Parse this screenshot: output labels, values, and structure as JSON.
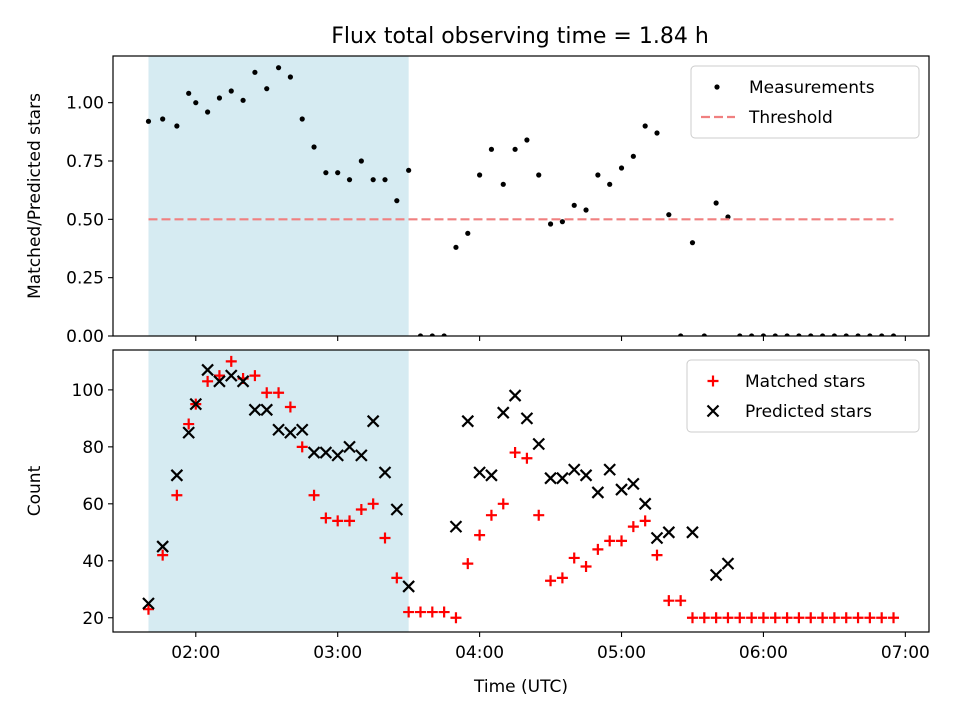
{
  "figure": {
    "title": "Flux total observing time = 1.84 h"
  },
  "chart_data": [
    {
      "type": "scatter",
      "ylabel": "Matched/Predicted stars",
      "xlabel": "",
      "xlim": [
        "01:25",
        "07:10"
      ],
      "ylim": [
        0,
        1.2
      ],
      "xticks": [
        "02:00",
        "03:00",
        "04:00",
        "05:00",
        "06:00",
        "07:00"
      ],
      "yticks": [
        0.0,
        0.25,
        0.5,
        0.75,
        1.0
      ],
      "ytick_labels": [
        "0.00",
        "0.25",
        "0.50",
        "0.75",
        "1.00"
      ],
      "show_xtick_labels": false,
      "shaded_span": {
        "x": [
          "01:40",
          "03:30"
        ],
        "color": "#add8e6"
      },
      "legend": {
        "location": "upper right"
      },
      "series": [
        {
          "name": "Measurements",
          "marker": "dot",
          "color": "#000000",
          "points": [
            [
              "01:40",
              0.92
            ],
            [
              "01:46",
              0.93
            ],
            [
              "01:52",
              0.9
            ],
            [
              "01:57",
              1.04
            ],
            [
              "02:00",
              1.0
            ],
            [
              "02:05",
              0.96
            ],
            [
              "02:10",
              1.02
            ],
            [
              "02:15",
              1.05
            ],
            [
              "02:20",
              1.01
            ],
            [
              "02:25",
              1.13
            ],
            [
              "02:30",
              1.06
            ],
            [
              "02:35",
              1.15
            ],
            [
              "02:40",
              1.11
            ],
            [
              "02:45",
              0.93
            ],
            [
              "02:50",
              0.81
            ],
            [
              "02:55",
              0.7
            ],
            [
              "03:00",
              0.7
            ],
            [
              "03:05",
              0.67
            ],
            [
              "03:10",
              0.75
            ],
            [
              "03:15",
              0.67
            ],
            [
              "03:20",
              0.67
            ],
            [
              "03:25",
              0.58
            ],
            [
              "03:30",
              0.71
            ],
            [
              "03:35",
              0.0
            ],
            [
              "03:40",
              0.0
            ],
            [
              "03:45",
              0.0
            ],
            [
              "03:50",
              0.38
            ],
            [
              "03:55",
              0.44
            ],
            [
              "04:00",
              0.69
            ],
            [
              "04:05",
              0.8
            ],
            [
              "04:10",
              0.65
            ],
            [
              "04:15",
              0.8
            ],
            [
              "04:20",
              0.84
            ],
            [
              "04:25",
              0.69
            ],
            [
              "04:30",
              0.48
            ],
            [
              "04:35",
              0.49
            ],
            [
              "04:40",
              0.56
            ],
            [
              "04:45",
              0.54
            ],
            [
              "04:50",
              0.69
            ],
            [
              "04:55",
              0.65
            ],
            [
              "05:00",
              0.72
            ],
            [
              "05:05",
              0.77
            ],
            [
              "05:10",
              0.9
            ],
            [
              "05:15",
              0.87
            ],
            [
              "05:20",
              0.52
            ],
            [
              "05:25",
              0.0
            ],
            [
              "05:30",
              0.4
            ],
            [
              "05:35",
              0.0
            ],
            [
              "05:40",
              0.57
            ],
            [
              "05:45",
              0.51
            ],
            [
              "05:50",
              0.0
            ],
            [
              "05:55",
              0.0
            ],
            [
              "06:00",
              0.0
            ],
            [
              "06:05",
              0.0
            ],
            [
              "06:10",
              0.0
            ],
            [
              "06:15",
              0.0
            ],
            [
              "06:20",
              0.0
            ],
            [
              "06:25",
              0.0
            ],
            [
              "06:30",
              0.0
            ],
            [
              "06:35",
              0.0
            ],
            [
              "06:40",
              0.0
            ],
            [
              "06:45",
              0.0
            ],
            [
              "06:50",
              0.0
            ],
            [
              "06:55",
              0.0
            ]
          ]
        },
        {
          "name": "Threshold",
          "line": "dashed",
          "color": "#f08080",
          "x": [
            "01:40",
            "06:55"
          ],
          "y": [
            0.5,
            0.5
          ]
        }
      ]
    },
    {
      "type": "scatter",
      "ylabel": "Count",
      "xlabel": "Time (UTC)",
      "xlim": [
        "01:25",
        "07:10"
      ],
      "ylim": [
        15,
        114
      ],
      "xticks": [
        "02:00",
        "03:00",
        "04:00",
        "05:00",
        "06:00",
        "07:00"
      ],
      "yticks": [
        20,
        40,
        60,
        80,
        100
      ],
      "show_xtick_labels": true,
      "shaded_span": {
        "x": [
          "01:40",
          "03:30"
        ],
        "color": "#add8e6"
      },
      "legend": {
        "location": "upper right"
      },
      "series": [
        {
          "name": "Matched stars",
          "marker": "plus",
          "color": "#ff0000",
          "points": [
            [
              "01:40",
              23
            ],
            [
              "01:46",
              42
            ],
            [
              "01:52",
              63
            ],
            [
              "01:57",
              88
            ],
            [
              "02:00",
              95
            ],
            [
              "02:05",
              103
            ],
            [
              "02:10",
              105
            ],
            [
              "02:15",
              110
            ],
            [
              "02:20",
              104
            ],
            [
              "02:25",
              105
            ],
            [
              "02:30",
              99
            ],
            [
              "02:35",
              99
            ],
            [
              "02:40",
              94
            ],
            [
              "02:45",
              80
            ],
            [
              "02:50",
              63
            ],
            [
              "02:55",
              55
            ],
            [
              "03:00",
              54
            ],
            [
              "03:05",
              54
            ],
            [
              "03:10",
              58
            ],
            [
              "03:15",
              60
            ],
            [
              "03:20",
              48
            ],
            [
              "03:25",
              34
            ],
            [
              "03:30",
              22
            ],
            [
              "03:35",
              22
            ],
            [
              "03:40",
              22
            ],
            [
              "03:45",
              22
            ],
            [
              "03:50",
              20
            ],
            [
              "03:55",
              39
            ],
            [
              "04:00",
              49
            ],
            [
              "04:05",
              56
            ],
            [
              "04:10",
              60
            ],
            [
              "04:15",
              78
            ],
            [
              "04:20",
              76
            ],
            [
              "04:25",
              56
            ],
            [
              "04:30",
              33
            ],
            [
              "04:35",
              34
            ],
            [
              "04:40",
              41
            ],
            [
              "04:45",
              38
            ],
            [
              "04:50",
              44
            ],
            [
              "04:55",
              47
            ],
            [
              "05:00",
              47
            ],
            [
              "05:05",
              52
            ],
            [
              "05:10",
              54
            ],
            [
              "05:15",
              42
            ],
            [
              "05:20",
              26
            ],
            [
              "05:25",
              26
            ],
            [
              "05:30",
              20
            ],
            [
              "05:35",
              20
            ],
            [
              "05:40",
              20
            ],
            [
              "05:45",
              20
            ],
            [
              "05:50",
              20
            ],
            [
              "05:55",
              20
            ],
            [
              "06:00",
              20
            ],
            [
              "06:05",
              20
            ],
            [
              "06:10",
              20
            ],
            [
              "06:15",
              20
            ],
            [
              "06:20",
              20
            ],
            [
              "06:25",
              20
            ],
            [
              "06:30",
              20
            ],
            [
              "06:35",
              20
            ],
            [
              "06:40",
              20
            ],
            [
              "06:45",
              20
            ],
            [
              "06:50",
              20
            ],
            [
              "06:55",
              20
            ]
          ]
        },
        {
          "name": "Predicted stars",
          "marker": "x",
          "color": "#000000",
          "points": [
            [
              "01:40",
              25
            ],
            [
              "01:46",
              45
            ],
            [
              "01:52",
              70
            ],
            [
              "01:57",
              85
            ],
            [
              "02:00",
              95
            ],
            [
              "02:05",
              107
            ],
            [
              "02:10",
              103
            ],
            [
              "02:15",
              105
            ],
            [
              "02:20",
              103
            ],
            [
              "02:25",
              93
            ],
            [
              "02:30",
              93
            ],
            [
              "02:35",
              86
            ],
            [
              "02:40",
              85
            ],
            [
              "02:45",
              86
            ],
            [
              "02:50",
              78
            ],
            [
              "02:55",
              78
            ],
            [
              "03:00",
              77
            ],
            [
              "03:05",
              80
            ],
            [
              "03:10",
              77
            ],
            [
              "03:15",
              89
            ],
            [
              "03:20",
              71
            ],
            [
              "03:25",
              58
            ],
            [
              "03:30",
              31
            ],
            [
              "03:50",
              52
            ],
            [
              "03:55",
              89
            ],
            [
              "04:00",
              71
            ],
            [
              "04:05",
              70
            ],
            [
              "04:10",
              92
            ],
            [
              "04:15",
              98
            ],
            [
              "04:20",
              90
            ],
            [
              "04:25",
              81
            ],
            [
              "04:30",
              69
            ],
            [
              "04:35",
              69
            ],
            [
              "04:40",
              72
            ],
            [
              "04:45",
              70
            ],
            [
              "04:50",
              64
            ],
            [
              "04:55",
              72
            ],
            [
              "05:00",
              65
            ],
            [
              "05:05",
              67
            ],
            [
              "05:10",
              60
            ],
            [
              "05:15",
              48
            ],
            [
              "05:20",
              50
            ],
            [
              "05:30",
              50
            ],
            [
              "05:40",
              35
            ],
            [
              "05:45",
              39
            ]
          ]
        }
      ]
    }
  ]
}
